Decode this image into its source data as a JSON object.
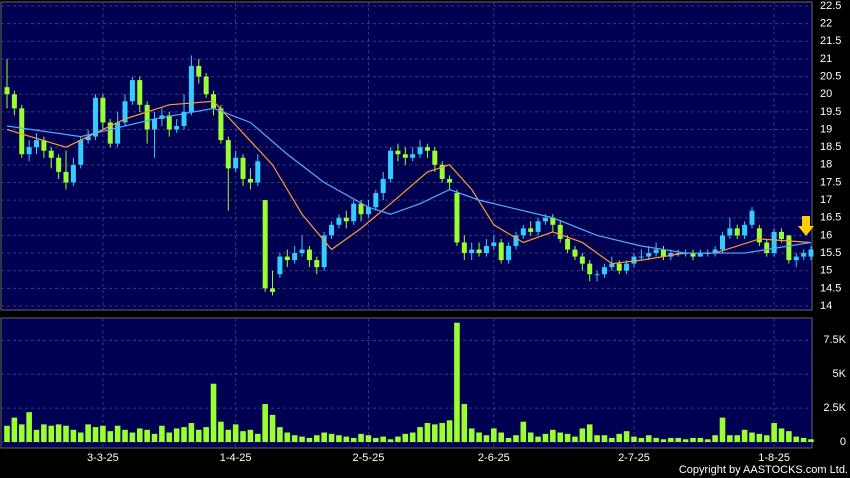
{
  "chart_data": {
    "type": "candlestick",
    "up_color": "#33ccff",
    "down_color": "#99ff33",
    "grid": true,
    "categories": [
      null,
      null,
      null,
      null,
      null,
      null,
      null,
      null,
      null,
      null,
      null,
      null,
      null,
      "3-3-25",
      null,
      null,
      null,
      null,
      null,
      null,
      null,
      null,
      null,
      null,
      null,
      null,
      null,
      null,
      null,
      null,
      null,
      "1-4-25",
      null,
      null,
      null,
      null,
      null,
      null,
      null,
      null,
      null,
      null,
      null,
      null,
      null,
      null,
      null,
      null,
      null,
      "2-5-25",
      null,
      null,
      null,
      null,
      null,
      null,
      null,
      null,
      null,
      null,
      null,
      null,
      null,
      null,
      null,
      null,
      "2-6-25",
      null,
      null,
      null,
      null,
      null,
      null,
      null,
      null,
      null,
      null,
      null,
      null,
      null,
      null,
      null,
      null,
      null,
      null,
      "2-7-25",
      null,
      null,
      null,
      null,
      null,
      null,
      null,
      null,
      null,
      null,
      null,
      null,
      null,
      null,
      null,
      null,
      null,
      null,
      "1-8-25",
      null,
      null,
      null,
      null,
      null
    ],
    "open": [
      20.2,
      20.0,
      19.6,
      18.3,
      18.5,
      18.7,
      18.4,
      18.2,
      17.8,
      17.5,
      18.0,
      18.7,
      18.8,
      19.9,
      19.2,
      18.6,
      19.2,
      19.8,
      20.4,
      19.7,
      19.0,
      19.3,
      19.4,
      19.0,
      19.1,
      19.5,
      20.8,
      20.5,
      20.0,
      19.6,
      18.7,
      17.9,
      18.2,
      17.6,
      17.5,
      17.0,
      14.5,
      14.9,
      15.4,
      15.3,
      15.5,
      15.6,
      15.3,
      15.1,
      16.0,
      16.3,
      16.5,
      16.4,
      16.9,
      16.6,
      16.8,
      17.2,
      17.6,
      18.4,
      18.3,
      18.2,
      18.3,
      18.5,
      18.4,
      18.0,
      17.6,
      17.2,
      15.8,
      15.5,
      15.6,
      15.5,
      15.7,
      15.8,
      15.3,
      15.7,
      16.0,
      16.2,
      16.1,
      16.4,
      16.5,
      16.3,
      15.9,
      15.6,
      15.4,
      15.2,
      14.9,
      14.9,
      15.1,
      15.2,
      15.0,
      15.2,
      15.4,
      15.4,
      15.5,
      15.6,
      15.4,
      15.5,
      15.5,
      15.5,
      15.4,
      15.5,
      15.5,
      15.6,
      16.0,
      16.2,
      16.0,
      16.3,
      16.2,
      15.8,
      15.5,
      16.1,
      16.0,
      15.3,
      15.4,
      15.4
    ],
    "high": [
      21.0,
      20.1,
      19.7,
      18.7,
      18.9,
      18.8,
      18.5,
      18.3,
      18.4,
      18.2,
      18.8,
      19.0,
      20.0,
      20.0,
      19.3,
      19.5,
      20.0,
      20.5,
      20.5,
      19.8,
      19.5,
      19.6,
      19.5,
      19.3,
      20.0,
      21.1,
      21.0,
      20.6,
      20.1,
      19.7,
      18.8,
      18.4,
      18.3,
      17.9,
      18.3,
      17.0,
      15.0,
      15.5,
      15.6,
      15.7,
      16.0,
      15.7,
      15.4,
      16.1,
      16.4,
      16.6,
      16.7,
      17.0,
      17.0,
      17.0,
      17.3,
      17.8,
      18.5,
      18.6,
      18.5,
      18.5,
      18.7,
      18.6,
      18.5,
      18.1,
      17.7,
      17.3,
      16.0,
      15.8,
      15.8,
      15.9,
      16.0,
      15.9,
      15.8,
      16.1,
      16.3,
      16.4,
      16.5,
      16.6,
      16.6,
      16.4,
      16.0,
      15.7,
      15.5,
      15.3,
      15.0,
      15.2,
      15.4,
      15.3,
      15.3,
      15.5,
      15.6,
      15.7,
      15.8,
      15.7,
      15.6,
      15.6,
      15.6,
      15.6,
      15.6,
      15.6,
      15.7,
      16.1,
      16.5,
      16.3,
      16.4,
      16.8,
      16.3,
      15.9,
      16.2,
      16.2,
      16.0,
      15.5,
      15.6,
      15.7
    ],
    "low": [
      19.6,
      19.4,
      18.2,
      18.1,
      18.3,
      18.2,
      17.9,
      17.6,
      17.3,
      17.4,
      17.9,
      18.6,
      18.7,
      19.0,
      18.5,
      18.5,
      19.1,
      19.7,
      19.5,
      18.6,
      18.2,
      19.1,
      18.8,
      18.9,
      19.0,
      19.4,
      20.3,
      19.9,
      19.4,
      18.6,
      16.7,
      17.8,
      17.4,
      17.3,
      17.4,
      14.4,
      14.3,
      14.8,
      15.1,
      15.2,
      15.4,
      15.1,
      14.9,
      15.0,
      15.9,
      16.2,
      16.2,
      16.3,
      16.4,
      16.5,
      16.7,
      17.0,
      17.5,
      18.1,
      18.0,
      18.1,
      18.2,
      18.2,
      17.8,
      17.5,
      17.3,
      15.7,
      15.3,
      15.3,
      15.4,
      15.4,
      15.6,
      15.2,
      15.2,
      15.6,
      15.9,
      16.0,
      16.0,
      16.3,
      16.1,
      15.8,
      15.5,
      15.3,
      15.0,
      14.7,
      14.7,
      14.8,
      15.0,
      14.9,
      14.9,
      15.1,
      15.3,
      15.3,
      15.4,
      15.3,
      15.3,
      15.4,
      15.4,
      15.3,
      15.4,
      15.4,
      15.4,
      15.5,
      15.9,
      15.9,
      15.9,
      16.2,
      15.7,
      15.4,
      15.4,
      15.8,
      15.2,
      15.1,
      15.3,
      15.3
    ],
    "close": [
      20.0,
      19.6,
      18.3,
      18.5,
      18.7,
      18.4,
      18.2,
      17.8,
      17.5,
      18.0,
      18.7,
      18.8,
      19.9,
      19.2,
      18.6,
      19.2,
      19.8,
      20.4,
      19.7,
      19.0,
      19.3,
      19.4,
      19.0,
      19.1,
      19.5,
      20.8,
      20.5,
      20.0,
      19.6,
      18.7,
      17.9,
      18.2,
      17.6,
      17.5,
      18.1,
      14.5,
      14.4,
      15.4,
      15.3,
      15.5,
      15.6,
      15.3,
      15.1,
      16.0,
      16.3,
      16.5,
      16.4,
      16.9,
      16.6,
      16.8,
      17.2,
      17.6,
      18.4,
      18.3,
      18.2,
      18.3,
      18.5,
      18.4,
      18.0,
      17.6,
      17.5,
      15.8,
      15.5,
      15.6,
      15.5,
      15.7,
      15.8,
      15.3,
      15.7,
      16.0,
      16.2,
      16.1,
      16.4,
      16.5,
      16.3,
      15.9,
      15.6,
      15.4,
      15.2,
      14.9,
      14.9,
      15.1,
      15.2,
      15.0,
      15.2,
      15.4,
      15.4,
      15.5,
      15.6,
      15.4,
      15.5,
      15.5,
      15.5,
      15.4,
      15.5,
      15.5,
      15.6,
      16.0,
      16.2,
      16.0,
      16.3,
      16.7,
      15.8,
      15.5,
      16.1,
      15.9,
      15.3,
      15.4,
      15.5,
      15.6
    ],
    "ylim": [
      14,
      22.5
    ],
    "yticks": [
      14,
      14.5,
      15,
      15.5,
      16,
      16.5,
      17,
      17.5,
      18,
      18.5,
      19,
      19.5,
      20,
      20.5,
      21,
      21.5,
      22,
      22.5
    ],
    "moving_averages": [
      {
        "color": "#ff9933",
        "x": [
          0,
          8,
          16,
          22,
          28,
          32,
          36,
          40,
          44,
          48,
          52,
          57,
          60,
          63,
          66,
          70,
          74,
          78,
          82,
          86,
          92,
          96,
          102,
          109
        ],
        "values": [
          19.0,
          18.5,
          19.3,
          19.7,
          19.8,
          18.9,
          18.0,
          16.6,
          15.6,
          16.2,
          16.9,
          17.8,
          18.0,
          17.3,
          16.3,
          15.8,
          16.1,
          15.8,
          15.2,
          15.3,
          15.5,
          15.5,
          15.9,
          15.8
        ]
      },
      {
        "color": "#55aaff",
        "x": [
          0,
          10,
          20,
          28,
          33,
          38,
          43,
          49,
          52,
          56,
          60,
          64,
          68,
          74,
          80,
          86,
          92,
          100,
          109
        ],
        "values": [
          19.1,
          18.8,
          19.3,
          19.6,
          19.2,
          18.3,
          17.5,
          16.8,
          16.6,
          16.9,
          17.3,
          17.0,
          16.8,
          16.5,
          16.0,
          15.7,
          15.5,
          15.5,
          15.8
        ]
      }
    ],
    "volume": {
      "color": "#99ff33",
      "ylim": [
        0,
        9000
      ],
      "yticks": [
        0,
        {
          "value": 2500,
          "label": "2.5K"
        },
        {
          "value": 5000,
          "label": "5K"
        },
        {
          "value": 7500,
          "label": "7.5K"
        }
      ],
      "values": [
        1200,
        1800,
        1300,
        2200,
        900,
        1300,
        1200,
        1300,
        1200,
        900,
        700,
        1300,
        1100,
        1200,
        800,
        1200,
        900,
        700,
        1000,
        900,
        600,
        1200,
        700,
        1000,
        1100,
        1400,
        900,
        1100,
        4300,
        1500,
        900,
        1300,
        800,
        900,
        600,
        2800,
        2000,
        1100,
        700,
        500,
        400,
        300,
        500,
        700,
        600,
        500,
        400,
        300,
        600,
        500,
        300,
        400,
        200,
        400,
        600,
        700,
        1100,
        1400,
        1300,
        1400,
        1600,
        8800,
        2800,
        1000,
        700,
        500,
        1000,
        700,
        300,
        500,
        1500,
        700,
        400,
        600,
        900,
        700,
        600,
        400,
        1000,
        1300,
        500,
        500,
        300,
        600,
        800,
        400,
        300,
        500,
        300,
        200,
        300,
        300,
        200,
        300,
        300,
        200,
        500,
        1800,
        500,
        500,
        900,
        700,
        600,
        500,
        1400,
        1000,
        800,
        400,
        300,
        200
      ]
    },
    "copyright": "Copyright by AASTOCKS.com Ltd."
  }
}
